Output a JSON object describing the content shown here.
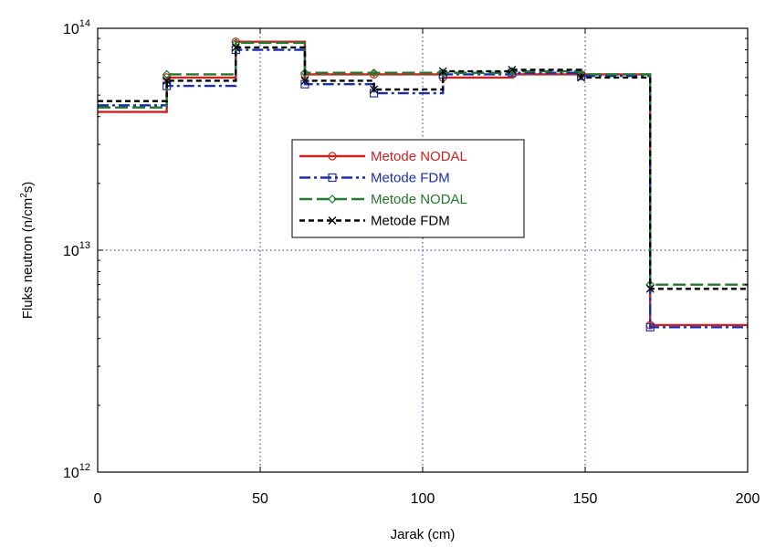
{
  "chart_data": {
    "type": "line",
    "title": "",
    "xlabel": "Jarak (cm)",
    "ylabel": "Fluks neutron (n/cm²s)",
    "ylabel_parts": {
      "before": "Fluks neutron (n/cm",
      "sup": "2",
      "after": "s)"
    },
    "xlim": [
      0,
      200
    ],
    "ylim": [
      1000000000000.0,
      100000000000000.0
    ],
    "yscale": "log",
    "grid": true,
    "legend_position": "center",
    "x_ticks": [
      0,
      50,
      100,
      150,
      200
    ],
    "x_tick_labels": [
      "0",
      "50",
      "100",
      "150",
      "200"
    ],
    "y_ticks": [
      1000000000000.0,
      10000000000000.0,
      100000000000000.0
    ],
    "y_tick_labels": [
      {
        "base": "10",
        "exp": "12"
      },
      {
        "base": "10",
        "exp": "13"
      },
      {
        "base": "10",
        "exp": "14"
      }
    ],
    "x": [
      0,
      21.25,
      42.5,
      63.75,
      85,
      106.25,
      127.5,
      148.75,
      170,
      200
    ],
    "series": [
      {
        "name": "Metode NODAL",
        "color": "#cc2222",
        "dash": "solid",
        "marker": "circle",
        "values": [
          42000000000000.0,
          60000000000000.0,
          87000000000000.0,
          62000000000000.0,
          62000000000000.0,
          60000000000000.0,
          62000000000000.0,
          62000000000000.0,
          4600000000000.0,
          4600000000000.0
        ]
      },
      {
        "name": "Metode FDM",
        "color": "#1a2fb0",
        "dash": "dashdot",
        "marker": "square",
        "values": [
          45000000000000.0,
          55000000000000.0,
          80000000000000.0,
          56000000000000.0,
          51000000000000.0,
          62000000000000.0,
          63000000000000.0,
          61000000000000.0,
          4500000000000.0,
          4500000000000.0
        ]
      },
      {
        "name": "Metode NODAL",
        "color": "#1f7a2a",
        "dash": "longdash",
        "marker": "diamond",
        "values": [
          44000000000000.0,
          62000000000000.0,
          86000000000000.0,
          63000000000000.0,
          63000000000000.0,
          63000000000000.0,
          64000000000000.0,
          62000000000000.0,
          7000000000000.0,
          7000000000000.0
        ]
      },
      {
        "name": "Metode FDM",
        "color": "#000000",
        "dash": "dashed",
        "marker": "x",
        "values": [
          47000000000000.0,
          58000000000000.0,
          82000000000000.0,
          58000000000000.0,
          53000000000000.0,
          64000000000000.0,
          65000000000000.0,
          60000000000000.0,
          6700000000000.0,
          6700000000000.0
        ]
      }
    ]
  }
}
